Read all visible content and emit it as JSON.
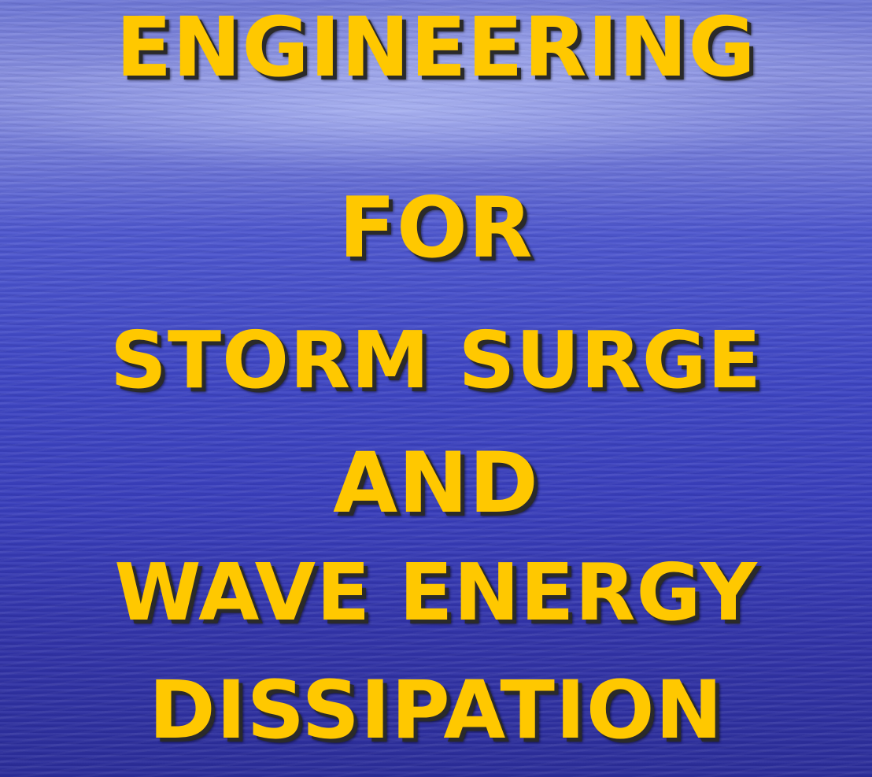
{
  "slide": {
    "title_lines": [
      "ENGINEERING",
      "FOR",
      "STORM SURGE",
      "AND",
      "WAVE ENERGY",
      "DISSIPATION"
    ],
    "colors": {
      "title_text": "#ffc800",
      "text_shadow": "#2a2a2a",
      "background_top": "#6f78d6",
      "background_bottom": "#2c2e9a"
    }
  }
}
